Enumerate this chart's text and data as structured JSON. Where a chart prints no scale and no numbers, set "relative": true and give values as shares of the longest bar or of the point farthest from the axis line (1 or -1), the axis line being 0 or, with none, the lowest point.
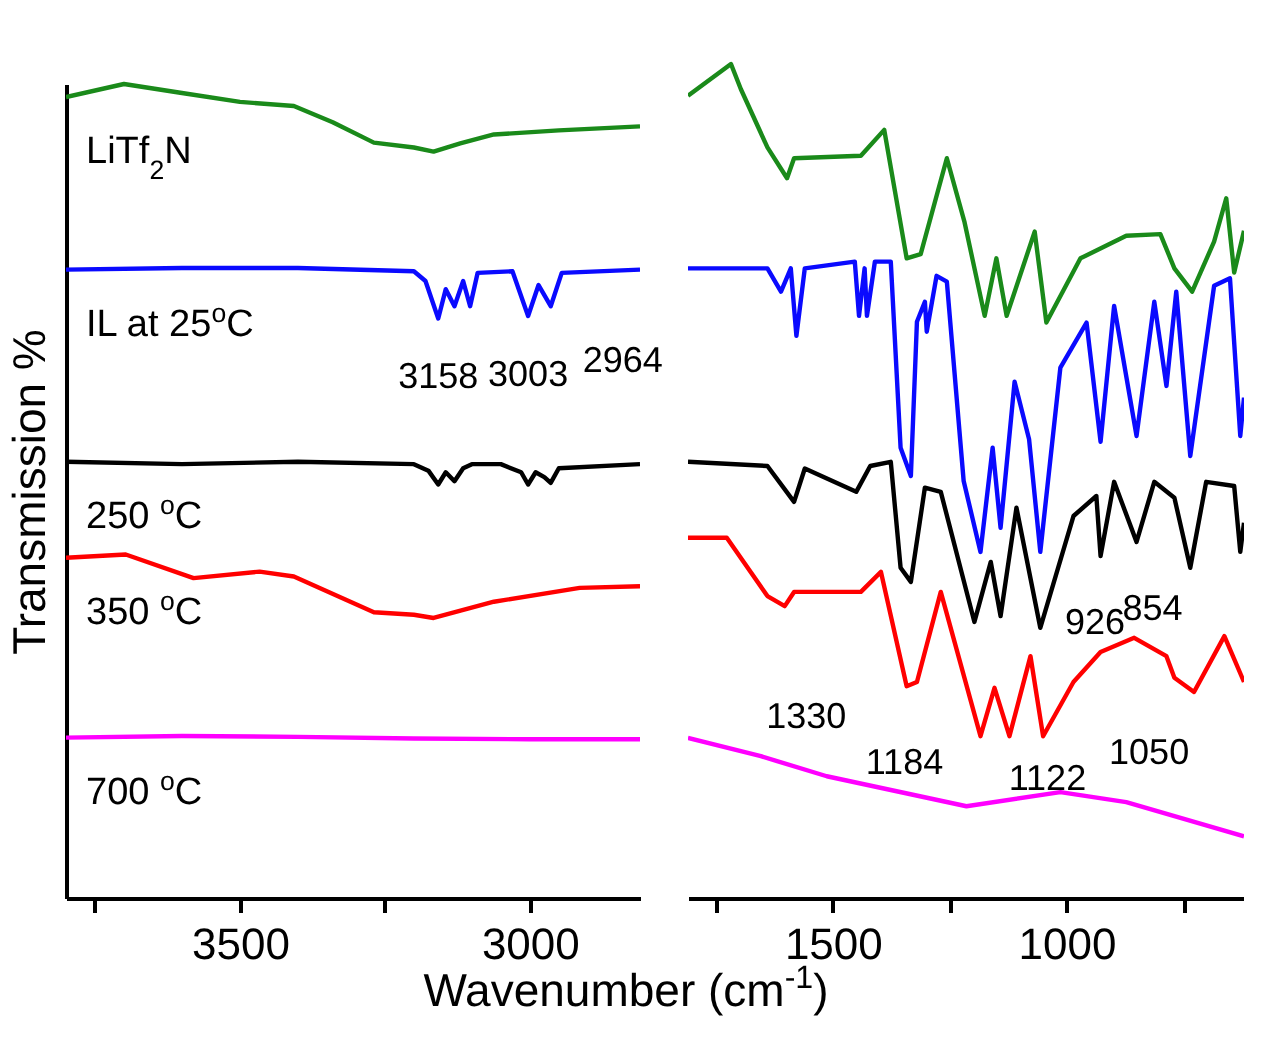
{
  "chart_data": [
    {
      "type": "line",
      "relative": true,
      "xlabel": "Wavenumber (cm$^{-1}$)",
      "ylabel": "Transmission %",
      "xlim": [
        3800,
        2810
      ],
      "xticks": [
        {
          "value": 3750,
          "label": null
        },
        3500,
        {
          "value": 3250,
          "label": null
        },
        3000
      ],
      "series": [
        {
          "name": "LiTf$_{2}$N",
          "color": "#1a8a1a",
          "x": [
            3800,
            3700,
            3600,
            3500,
            3407,
            3340,
            3269,
            3200,
            3166,
            3120,
            3062,
            2950,
            2810
          ],
          "values": [
            0.984,
            1,
            0.989,
            0.978,
            0.973,
            0.953,
            0.928,
            0.922,
            0.917,
            0.927,
            0.938,
            0.943,
            0.948
          ]
        },
        {
          "name": "IL at 25$^{o}$C",
          "color": "#0a0aff",
          "x": [
            3800,
            3600,
            3400,
            3200,
            3180,
            3158,
            3145,
            3130,
            3115,
            3103,
            3090,
            3030,
            3003,
            2985,
            2964,
            2945,
            2810
          ],
          "values": [
            0.772,
            0.774,
            0.774,
            0.77,
            0.758,
            0.712,
            0.748,
            0.727,
            0.758,
            0.727,
            0.768,
            0.77,
            0.715,
            0.753,
            0.727,
            0.768,
            0.772
          ]
        },
        {
          "name": "250 $^{o}$C",
          "color": "#000000",
          "x": [
            3800,
            3600,
            3400,
            3200,
            3175,
            3158,
            3145,
            3130,
            3115,
            3100,
            3050,
            3015,
            3003,
            2990,
            2975,
            2964,
            2950,
            2810
          ],
          "values": [
            0.536,
            0.533,
            0.536,
            0.533,
            0.525,
            0.508,
            0.523,
            0.512,
            0.528,
            0.533,
            0.533,
            0.523,
            0.508,
            0.523,
            0.517,
            0.51,
            0.528,
            0.533
          ]
        },
        {
          "name": "350 $^{o}$C",
          "color": "#ff0000",
          "x": [
            3800,
            3697,
            3580,
            3466,
            3407,
            3269,
            3200,
            3166,
            3062,
            2914,
            2810
          ],
          "values": [
            0.418,
            0.422,
            0.393,
            0.401,
            0.395,
            0.351,
            0.348,
            0.344,
            0.364,
            0.381,
            0.383
          ]
        },
        {
          "name": "700 $^{o}$C",
          "color": "#ff00ff",
          "x": [
            3800,
            3600,
            3400,
            3200,
            3000,
            2810
          ],
          "values": [
            0.197,
            0.199,
            0.198,
            0.196,
            0.195,
            0.195
          ]
        }
      ],
      "annotations": [
        {
          "text": "3158",
          "x": 3158,
          "y": 0.712
        },
        {
          "text": "3003",
          "x": 3003,
          "y": 0.715
        },
        {
          "text": "2964",
          "x": 2964,
          "y": 0.727
        }
      ]
    },
    {
      "type": "line",
      "relative": true,
      "xlim": [
        1810,
        620
      ],
      "xticks": [
        {
          "value": 1750,
          "label": null
        },
        1500,
        {
          "value": 1250,
          "label": null
        },
        1000,
        {
          "value": 750,
          "label": null
        }
      ],
      "series": [
        {
          "color": "#1a8a1a",
          "x": [
            1810,
            1718,
            1697,
            1640,
            1598,
            1583,
            1440,
            1390,
            1342,
            1312,
            1256,
            1218,
            1175,
            1150,
            1128,
            1068,
            1043,
            970,
            872,
            799,
            769,
            731,
            684,
            658,
            641,
            620
          ],
          "values": [
            0.962,
            1,
            0.97,
            0.9,
            0.863,
            0.887,
            0.89,
            0.921,
            0.767,
            0.772,
            0.887,
            0.81,
            0.698,
            0.767,
            0.698,
            0.799,
            0.69,
            0.767,
            0.794,
            0.796,
            0.755,
            0.727,
            0.787,
            0.839,
            0.75,
            0.8
          ]
        },
        {
          "color": "#0a0aff",
          "x": [
            1810,
            1640,
            1611,
            1590,
            1578,
            1560,
            1453,
            1444,
            1432,
            1427,
            1410,
            1376,
            1355,
            1333,
            1320,
            1303,
            1299,
            1278,
            1256,
            1220,
            1184,
            1158,
            1141,
            1111,
            1080,
            1056,
            1013,
            957,
            927,
            898,
            850,
            812,
            786,
            765,
            735,
            684,
            650,
            628,
            620
          ],
          "values": [
            0.755,
            0.755,
            0.727,
            0.755,
            0.674,
            0.755,
            0.763,
            0.698,
            0.755,
            0.698,
            0.763,
            0.763,
            0.54,
            0.506,
            0.691,
            0.715,
            0.679,
            0.746,
            0.739,
            0.5,
            0.415,
            0.54,
            0.444,
            0.619,
            0.55,
            0.415,
            0.636,
            0.69,
            0.547,
            0.71,
            0.554,
            0.715,
            0.614,
            0.727,
            0.53,
            0.734,
            0.743,
            0.554,
            0.6
          ]
        },
        {
          "color": "#000000",
          "x": [
            1810,
            1640,
            1583,
            1560,
            1450,
            1420,
            1376,
            1355,
            1333,
            1303,
            1269,
            1197,
            1162,
            1141,
            1107,
            1056,
            985,
            936,
            927,
            898,
            850,
            812,
            769,
            735,
            701,
            641,
            628,
            620
          ],
          "values": [
            0.523,
            0.518,
            0.475,
            0.515,
            0.487,
            0.518,
            0.523,
            0.396,
            0.379,
            0.492,
            0.487,
            0.331,
            0.403,
            0.338,
            0.468,
            0.324,
            0.458,
            0.482,
            0.41,
            0.499,
            0.427,
            0.499,
            0.48,
            0.396,
            0.499,
            0.494,
            0.415,
            0.45
          ]
        },
        {
          "color": "#ff0000",
          "x": [
            1810,
            1727,
            1640,
            1603,
            1583,
            1440,
            1397,
            1342,
            1320,
            1269,
            1184,
            1154,
            1122,
            1077,
            1050,
            985,
            927,
            855,
            786,
            769,
            727,
            662,
            620
          ],
          "values": [
            0.432,
            0.432,
            0.362,
            0.35,
            0.367,
            0.367,
            0.391,
            0.254,
            0.259,
            0.367,
            0.194,
            0.252,
            0.194,
            0.29,
            0.194,
            0.259,
            0.295,
            0.312,
            0.29,
            0.264,
            0.247,
            0.314,
            0.259
          ]
        },
        {
          "color": "#ff00ff",
          "x": [
            1810,
            1654,
            1513,
            1214,
            1013,
            872,
            620
          ],
          "values": [
            0.192,
            0.17,
            0.146,
            0.11,
            0.127,
            0.115,
            0.074
          ]
        }
      ],
      "annotations": [
        {
          "text": "1330",
          "x": 1330,
          "y": 0.254
        },
        {
          "text": "1184",
          "x": 1184,
          "y": 0.194
        },
        {
          "text": "1122",
          "x": 1122,
          "y": 0.194
        },
        {
          "text": "1050",
          "x": 1050,
          "y": 0.194
        },
        {
          "text": "926",
          "x": 926,
          "y": 0.41
        },
        {
          "text": "854",
          "x": 850,
          "y": 0.427
        }
      ]
    }
  ]
}
